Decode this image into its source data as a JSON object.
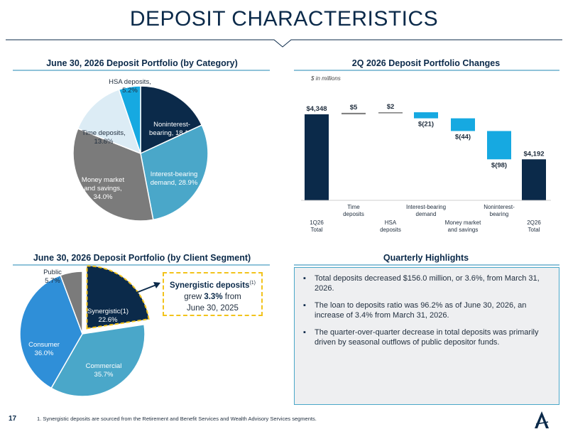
{
  "title": "DEPOSIT CHARACTERISTICS",
  "sections": {
    "category_title": "June 30, 2026 Deposit Portfolio (by Category)",
    "changes_title": "2Q 2026 Deposit Portfolio Changes",
    "segment_title": "June 30, 2026 Deposit Portfolio (by Client Segment)",
    "highlights_title": "Quarterly Highlights"
  },
  "units_note": "$ in millions",
  "callout": {
    "line1": "Synergistic deposits",
    "sup": "(1)",
    "line2_pre": "grew ",
    "line2_bold": "3.3%",
    "line2_post": " from",
    "line3": "June 30, 2025"
  },
  "highlights": [
    "Total deposits decreased $156.0 million, or 3.6%, from March 31, 2026.",
    "The loan to deposits ratio was 96.2% as of June 30, 2026, an increase of 3.4% from March 31, 2026.",
    "The quarter-over-quarter decrease in total deposits was primarily driven by seasonal outflows of public depositor funds."
  ],
  "footer": {
    "page_number": "17",
    "footnote": "1. Synergistic deposits are sourced from the Retirement and Benefit Services and Wealth Advisory Services segments."
  },
  "logo_icon": "arrow-a-logo-icon",
  "colors": {
    "navy": "#0b2a4a",
    "teal": "#4aa7c9",
    "gray": "#7b7b7b",
    "light_blue": "#dcecf5",
    "bright_blue": "#16a9e1",
    "consumer_blue": "#2f8fd8",
    "accent_yellow": "#f2c31c"
  },
  "chart_data": [
    {
      "type": "pie",
      "title": "June 30, 2026 Deposit Portfolio (by Category)",
      "slices": [
        {
          "label": "Noninterest-bearing",
          "value": 18.1,
          "text_lines": [
            "Noninterest-",
            "bearing, 18.1%"
          ],
          "color": "#0b2a4a",
          "text_color": "#ffffff"
        },
        {
          "label": "Interest-bearing demand",
          "value": 28.9,
          "text_lines": [
            "Interest-bearing",
            "demand, 28.9%"
          ],
          "color": "#4aa7c9",
          "text_color": "#ffffff"
        },
        {
          "label": "Money market and savings",
          "value": 34.0,
          "text_lines": [
            "Money market",
            "and savings,",
            "34.0%"
          ],
          "color": "#7b7b7b",
          "text_color": "#ffffff"
        },
        {
          "label": "Time deposits",
          "value": 13.8,
          "text_lines": [
            "Time deposits,",
            "13.8%"
          ],
          "color": "#dcecf5",
          "text_color": "#1f2d3d"
        },
        {
          "label": "HSA deposits",
          "value": 5.2,
          "text_lines": [
            "HSA deposits,",
            "5.2%"
          ],
          "color": "#16a9e1",
          "text_color": "#1f2d3d"
        }
      ]
    },
    {
      "type": "bar",
      "subtype": "waterfall",
      "title": "2Q 2026 Deposit Portfolio Changes",
      "units": "$ in millions",
      "steps": [
        {
          "label_lines": [
            "1Q26",
            "Total"
          ],
          "value": 4348,
          "value_label": "$4,348",
          "kind": "total",
          "label_row": "lower"
        },
        {
          "label_lines": [
            "Time",
            "deposits"
          ],
          "value": 5,
          "value_label": "$5",
          "kind": "delta",
          "label_row": "upper"
        },
        {
          "label_lines": [
            "HSA",
            "deposits"
          ],
          "value": 2,
          "value_label": "$2",
          "kind": "delta",
          "label_row": "lower"
        },
        {
          "label_lines": [
            "Interest-bearing",
            "demand"
          ],
          "value": -21,
          "value_label": "$(21)",
          "kind": "delta",
          "label_row": "upper"
        },
        {
          "label_lines": [
            "Money market",
            "and savings"
          ],
          "value": -44,
          "value_label": "$(44)",
          "kind": "delta",
          "label_row": "lower"
        },
        {
          "label_lines": [
            "Noninterest-",
            "bearing"
          ],
          "value": -98,
          "value_label": "$(98)",
          "kind": "delta",
          "label_row": "upper"
        },
        {
          "label_lines": [
            "2Q26",
            "Total"
          ],
          "value": 4192,
          "value_label": "$4,192",
          "kind": "total",
          "label_row": "lower"
        }
      ],
      "ylim": [
        4050,
        4360
      ]
    },
    {
      "type": "pie",
      "title": "June 30, 2026 Deposit Portfolio (by Client Segment)",
      "slices": [
        {
          "label": "Synergistic",
          "value": 22.6,
          "text_lines": [
            "Synergistic(1)",
            "22.6%"
          ],
          "color": "#0b2a4a",
          "text_color": "#ffffff",
          "exploded": true
        },
        {
          "label": "Commercial",
          "value": 35.7,
          "text_lines": [
            "Commercial",
            "35.7%"
          ],
          "color": "#4aa7c9",
          "text_color": "#ffffff"
        },
        {
          "label": "Consumer",
          "value": 36.0,
          "text_lines": [
            "Consumer",
            "36.0%"
          ],
          "color": "#2f8fd8",
          "text_color": "#ffffff"
        },
        {
          "label": "Public",
          "value": 5.7,
          "text_lines": [
            "Public",
            "5.7%"
          ],
          "color": "#7b7b7b",
          "text_color": "#1f2d3d"
        }
      ]
    }
  ]
}
